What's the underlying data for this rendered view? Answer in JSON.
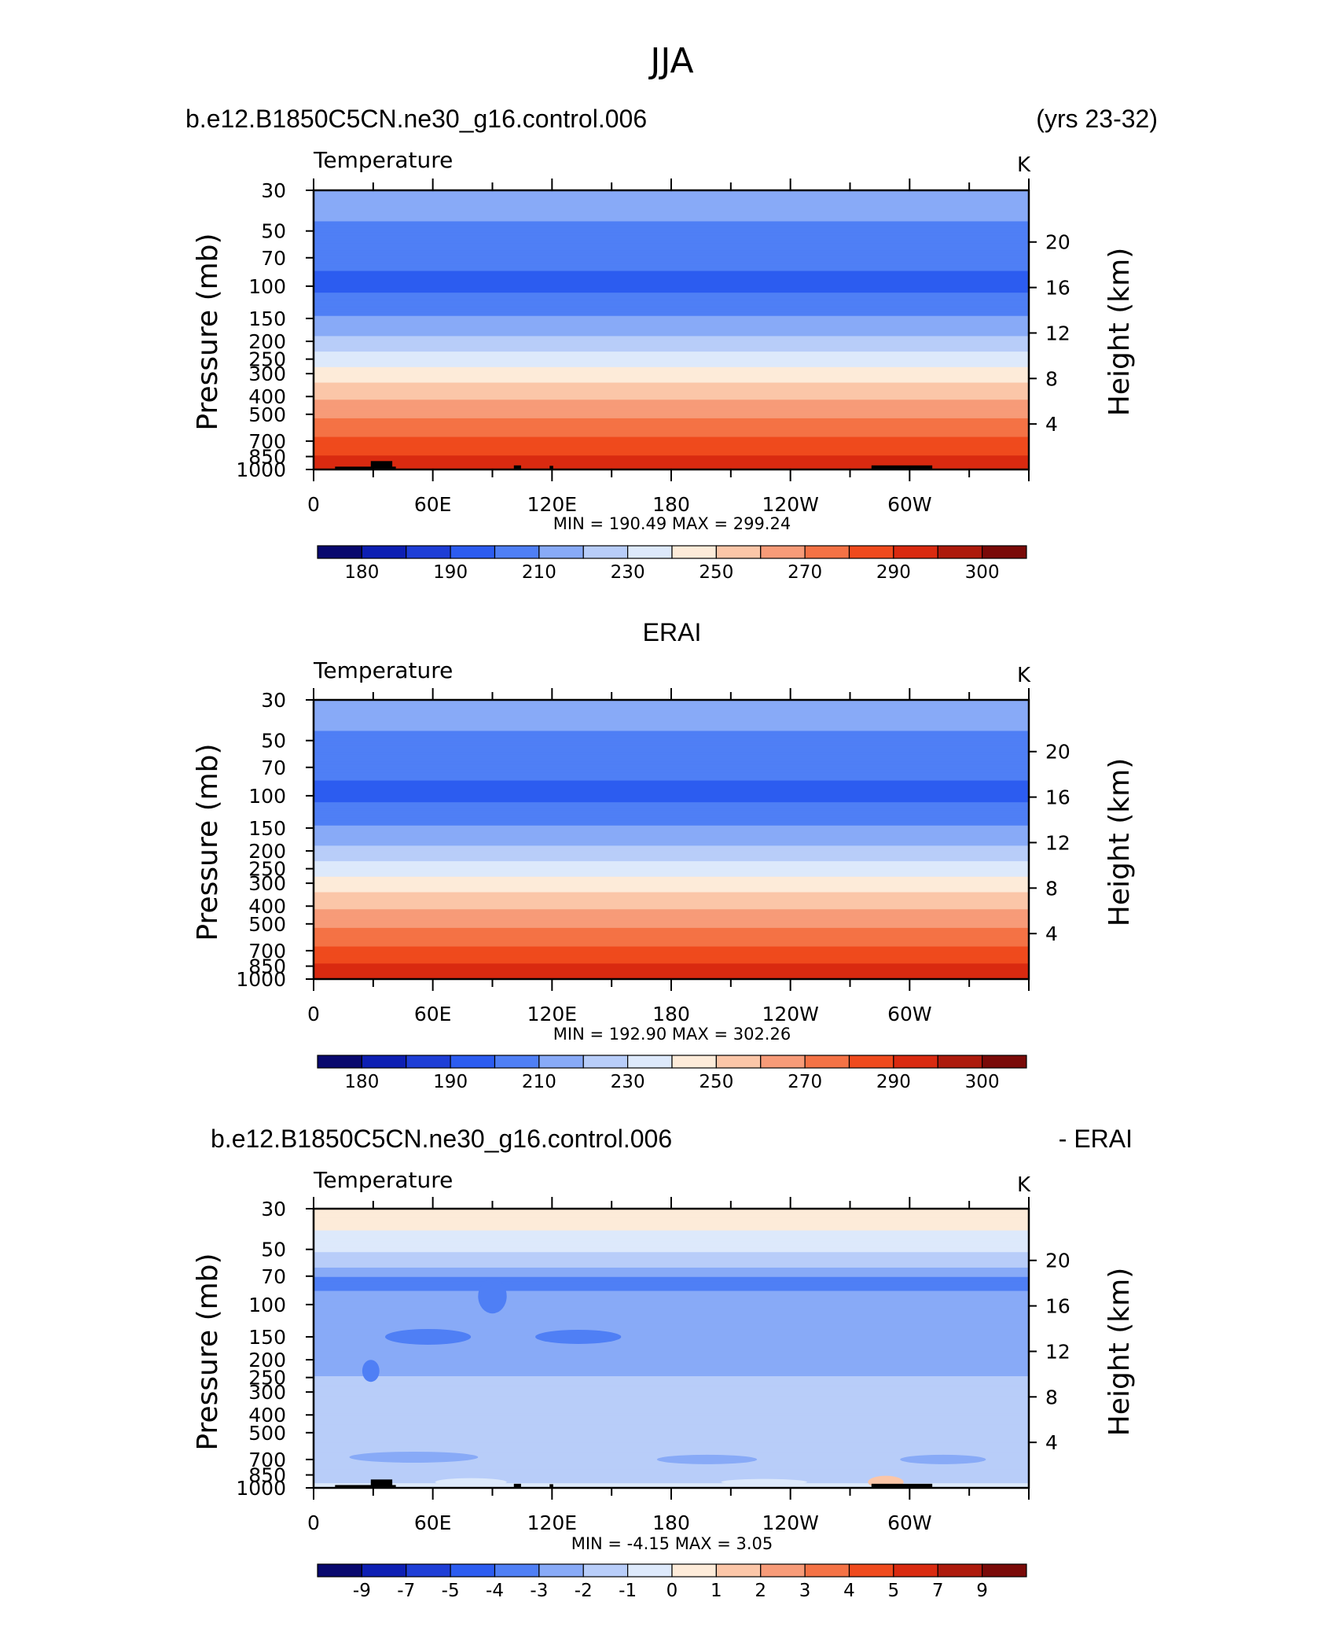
{
  "title": "JJA",
  "panels": [
    {
      "case_label": "b.e12.B1850C5CN.ne30_g16.control.006",
      "case_note": "(yrs 23-32)",
      "center_label": "",
      "var_label": "Temperature",
      "unit_label": "K",
      "stats_text": "MIN =  190.49   MAX =  299.24",
      "colorbar_labels": [
        "180",
        "190",
        "210",
        "230",
        "250",
        "270",
        "290",
        "300"
      ]
    },
    {
      "case_label": "",
      "case_note": "",
      "center_label": "ERAI",
      "var_label": "Temperature",
      "unit_label": "K",
      "stats_text": "MIN =  192.90   MAX =  302.26",
      "colorbar_labels": [
        "180",
        "190",
        "210",
        "230",
        "250",
        "270",
        "290",
        "300"
      ]
    },
    {
      "case_label": "b.e12.B1850C5CN.ne30_g16.control.006",
      "case_note": "- ERAI",
      "center_label": "",
      "var_label": "Temperature",
      "unit_label": "K",
      "stats_text": "MIN =    -4.15   MAX =     3.05",
      "colorbar_labels": [
        "-9",
        "-7",
        "-5",
        "-4",
        "-3",
        "-2",
        "-1",
        "0",
        "1",
        "2",
        "3",
        "4",
        "5",
        "7",
        "9"
      ]
    }
  ],
  "axes": {
    "ylabel_left": "Pressure  (mb)",
    "ylabel_right": "Height  (km)",
    "pressure_ticks": [
      "30",
      "50",
      "70",
      "100",
      "150",
      "200",
      "250",
      "300",
      "400",
      "500",
      "700",
      "850",
      "1000"
    ],
    "height_ticks": [
      "20",
      "16",
      "12",
      "8",
      "4"
    ],
    "x_ticks": [
      "0",
      "60E",
      "120E",
      "180",
      "120W",
      "60W"
    ]
  },
  "colors": {
    "palette": [
      "#08086e",
      "#0d1fb3",
      "#1e3ed6",
      "#2c5cf0",
      "#4f7ff5",
      "#88aaf7",
      "#b8cdf9",
      "#dde9fb",
      "#fdebd9",
      "#fbc6a8",
      "#f79b78",
      "#f47245",
      "#ef4a1d",
      "#d92a10",
      "#ad1a0c",
      "#7a0a08"
    ]
  },
  "chart_data": [
    {
      "type": "heatmap",
      "title": "Temperature",
      "units": "K",
      "x_range": [
        0,
        360
      ],
      "y_scale": "log",
      "y_range_mb": [
        30,
        1000
      ],
      "levels": [
        180,
        185,
        190,
        200,
        210,
        220,
        230,
        240,
        250,
        260,
        270,
        280,
        290,
        295,
        300
      ],
      "min": 190.49,
      "max": 299.24,
      "approx_profile": [
        {
          "p": 35,
          "T": 214
        },
        {
          "p": 60,
          "T": 205
        },
        {
          "p": 100,
          "T": 197
        },
        {
          "p": 170,
          "T": 215
        },
        {
          "p": 250,
          "T": 235
        },
        {
          "p": 350,
          "T": 252
        },
        {
          "p": 500,
          "T": 268
        },
        {
          "p": 700,
          "T": 282
        },
        {
          "p": 900,
          "T": 293
        }
      ]
    },
    {
      "type": "heatmap",
      "title": "Temperature",
      "units": "K",
      "x_range": [
        0,
        360
      ],
      "y_scale": "log",
      "y_range_mb": [
        30,
        1000
      ],
      "levels": [
        180,
        185,
        190,
        200,
        210,
        220,
        230,
        240,
        250,
        260,
        270,
        280,
        290,
        295,
        300
      ],
      "min": 192.9,
      "max": 302.26,
      "approx_profile": [
        {
          "p": 35,
          "T": 214
        },
        {
          "p": 60,
          "T": 205
        },
        {
          "p": 100,
          "T": 197
        },
        {
          "p": 170,
          "T": 215
        },
        {
          "p": 250,
          "T": 235
        },
        {
          "p": 350,
          "T": 252
        },
        {
          "p": 500,
          "T": 268
        },
        {
          "p": 700,
          "T": 282
        },
        {
          "p": 900,
          "T": 294
        }
      ]
    },
    {
      "type": "heatmap",
      "title": "Temperature",
      "units": "K",
      "x_range": [
        0,
        360
      ],
      "y_scale": "log",
      "y_range_mb": [
        30,
        1000
      ],
      "levels": [
        -9,
        -7,
        -5,
        -4,
        -3,
        -2,
        -1,
        0,
        1,
        2,
        3,
        4,
        5,
        7,
        9
      ],
      "min": -4.15,
      "max": 3.05,
      "approx_profile": [
        {
          "p": 35,
          "T": 0.5
        },
        {
          "p": 45,
          "T": -0.5
        },
        {
          "p": 60,
          "T": -1.5
        },
        {
          "p": 75,
          "T": -3.5
        },
        {
          "p": 85,
          "T": -3
        },
        {
          "p": 150,
          "T": -2.5
        },
        {
          "p": 400,
          "T": -1.5
        },
        {
          "p": 800,
          "T": -2
        },
        {
          "p": 950,
          "T": -1
        }
      ]
    }
  ]
}
